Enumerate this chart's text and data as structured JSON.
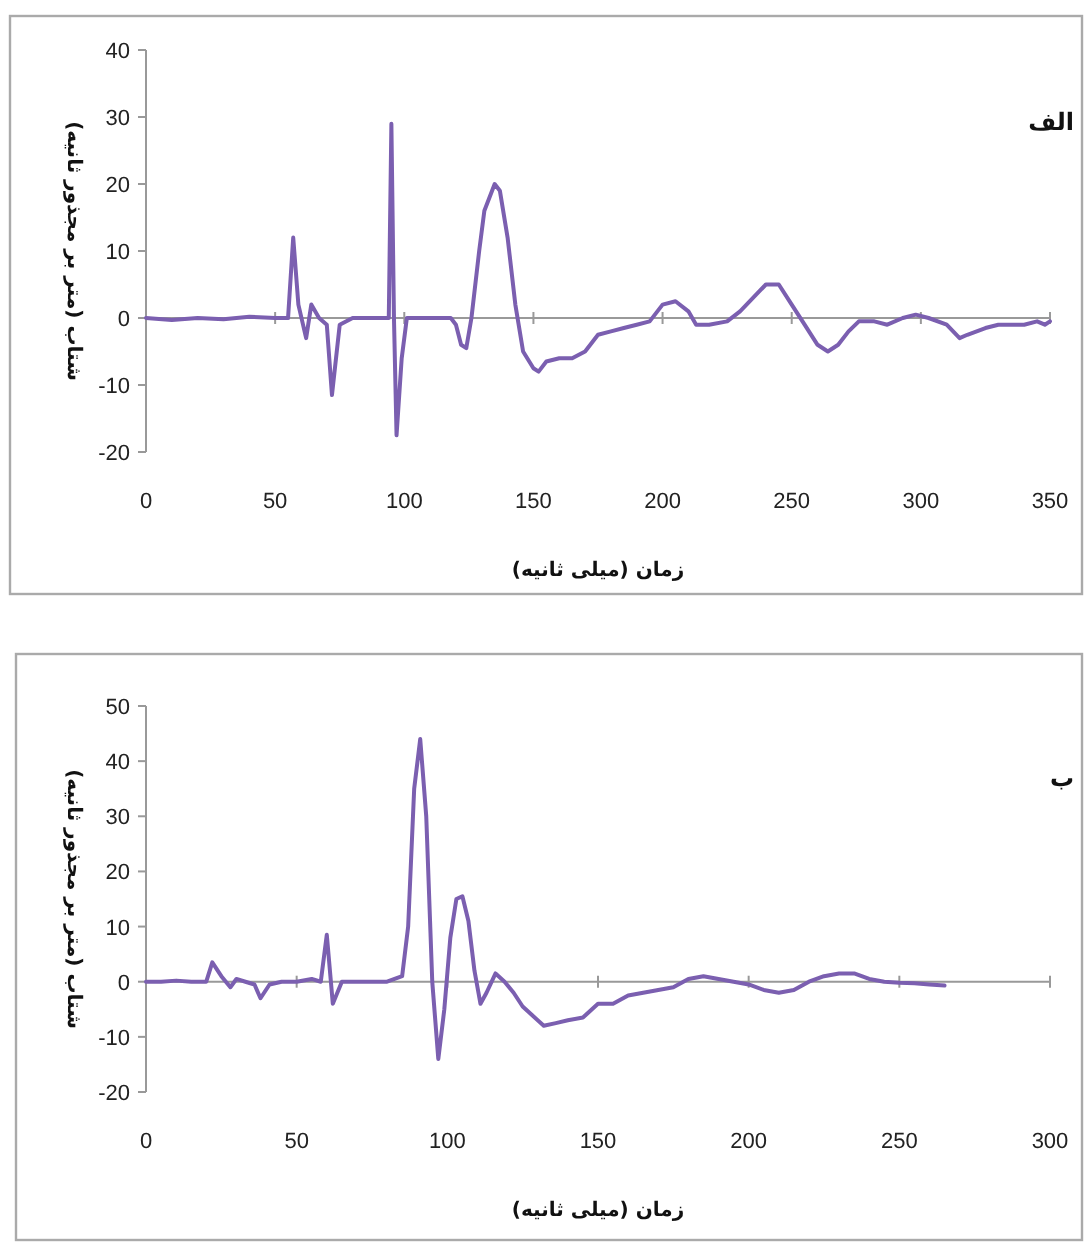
{
  "chart_data": [
    {
      "type": "line",
      "title": "الف",
      "xlabel": "زمان (میلی ثانیه)",
      "ylabel": "شتاب (متر بر مجذور ثانیه)",
      "color": "#7b5fb0",
      "xlim": [
        0,
        350
      ],
      "ylim": [
        -20,
        40
      ],
      "xticks": [
        0,
        50,
        100,
        150,
        200,
        250,
        300,
        350
      ],
      "yticks": [
        -20,
        -10,
        0,
        10,
        20,
        30,
        40
      ],
      "x": [
        0,
        10,
        20,
        30,
        40,
        50,
        55,
        57,
        59,
        62,
        64,
        67,
        70,
        72,
        75,
        80,
        90,
        94,
        95,
        96,
        97,
        99,
        101,
        105,
        110,
        118,
        120,
        122,
        124,
        126,
        129,
        131,
        135,
        137,
        140,
        143,
        146,
        150,
        152,
        155,
        160,
        165,
        170,
        175,
        180,
        185,
        190,
        195,
        200,
        205,
        210,
        213,
        218,
        225,
        230,
        235,
        240,
        245,
        250,
        255,
        260,
        264,
        268,
        272,
        276,
        282,
        287,
        293,
        298,
        303,
        310,
        315,
        318,
        325,
        330,
        340,
        345,
        348,
        350
      ],
      "values": [
        0,
        -0.3,
        0,
        -0.2,
        0.2,
        0,
        0,
        12,
        2,
        -3,
        2,
        0,
        -1,
        -11.5,
        -1,
        0,
        0,
        0,
        29,
        0,
        -17.5,
        -6,
        0,
        0,
        0,
        0,
        -1,
        -4,
        -4.5,
        0,
        10,
        16,
        20,
        19,
        12,
        2,
        -5,
        -7.5,
        -8,
        -6.5,
        -6,
        -6,
        -5,
        -2.5,
        -2,
        -1.5,
        -1,
        -0.5,
        2,
        2.5,
        1,
        -1,
        -1,
        -0.5,
        1,
        3,
        5,
        5,
        2,
        -1,
        -4,
        -5,
        -4,
        -2,
        -0.5,
        -0.5,
        -1,
        0,
        0.5,
        0,
        -1,
        -3,
        -2.5,
        -1.5,
        -1,
        -1,
        -0.5,
        -1,
        -0.5
      ]
    },
    {
      "type": "line",
      "title": "ب",
      "xlabel": "زمان (میلی ثانیه)",
      "ylabel": "شتاب (متر بر مجذور ثانیه)",
      "color": "#7b5fb0",
      "xlim": [
        0,
        300
      ],
      "ylim": [
        -20,
        50
      ],
      "xticks": [
        0,
        50,
        100,
        150,
        200,
        250,
        300
      ],
      "yticks": [
        -20,
        -10,
        0,
        10,
        20,
        30,
        40,
        50
      ],
      "x": [
        0,
        5,
        10,
        15,
        20,
        22,
        25,
        28,
        30,
        33,
        36,
        38,
        41,
        45,
        50,
        55,
        58,
        60,
        62,
        65,
        70,
        80,
        85,
        87,
        89,
        91,
        93,
        95,
        97,
        99,
        101,
        103,
        105,
        107,
        109,
        111,
        113,
        116,
        119,
        122,
        125,
        128,
        132,
        136,
        140,
        145,
        150,
        155,
        160,
        165,
        170,
        175,
        180,
        185,
        190,
        195,
        200,
        205,
        210,
        215,
        220,
        225,
        230,
        235,
        240,
        245,
        250,
        255,
        260,
        265
      ],
      "values": [
        0,
        0,
        0.2,
        0,
        0,
        3.5,
        1,
        -1,
        0.5,
        0,
        -0.5,
        -3,
        -0.5,
        0,
        0,
        0.5,
        0,
        8.5,
        -4,
        0,
        0,
        0,
        1,
        10,
        35,
        44,
        30,
        0,
        -14,
        -5,
        8,
        15,
        15.5,
        11,
        2,
        -4,
        -2,
        1.5,
        0,
        -2,
        -4.5,
        -6,
        -8,
        -7.5,
        -7,
        -6.5,
        -4,
        -4,
        -2.5,
        -2,
        -1.5,
        -1,
        0.5,
        1,
        0.5,
        0,
        -0.5,
        -1.5,
        -2,
        -1.5,
        0,
        1,
        1.5,
        1.5,
        0.5,
        0,
        -0.2,
        -0.3,
        -0.5,
        -0.7
      ]
    }
  ]
}
